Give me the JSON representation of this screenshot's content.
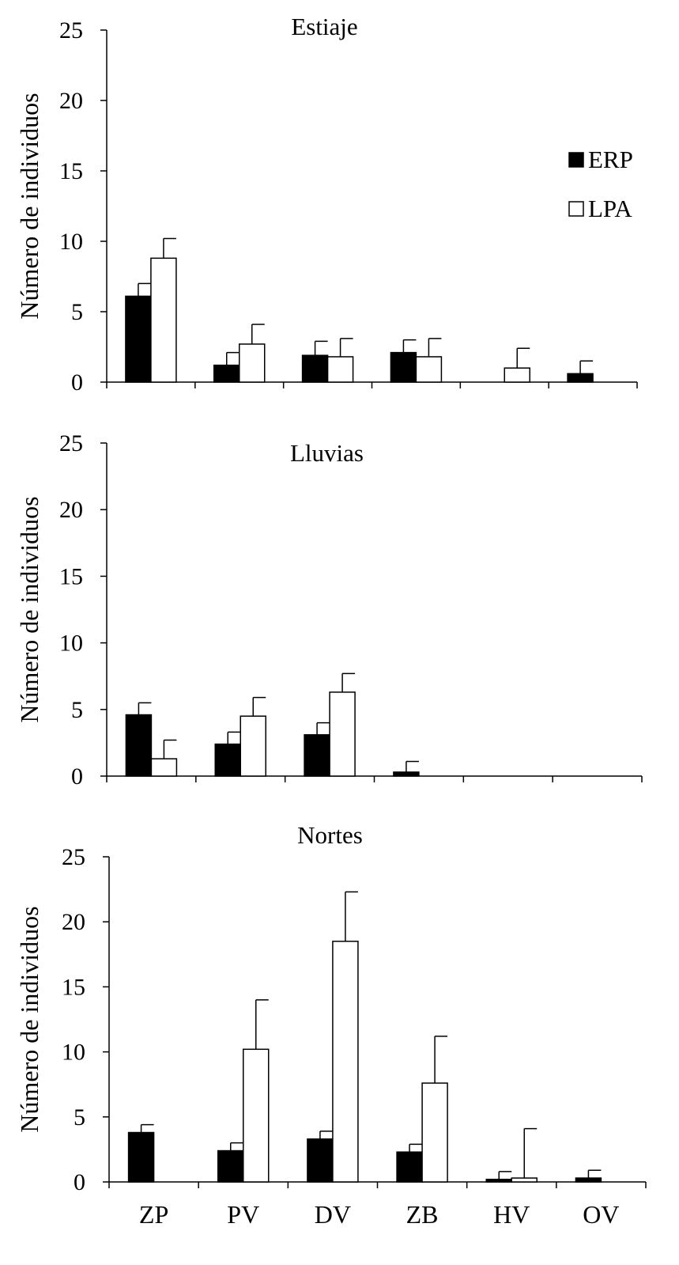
{
  "chart_data": [
    {
      "type": "bar",
      "title": "Estiaje",
      "ylabel": "Número de individuos",
      "xlabel": "",
      "ylim": [
        0,
        25
      ],
      "yticks": [
        0,
        5,
        10,
        15,
        20,
        25
      ],
      "categories": [
        "ZP",
        "PV",
        "DV",
        "ZB",
        "HV",
        "OV"
      ],
      "show_category_labels": false,
      "legend": {
        "placement": "top-right",
        "entries": [
          "ERP",
          "LPA"
        ]
      },
      "series": [
        {
          "name": "ERP",
          "color": "#000000",
          "values": [
            6.1,
            1.2,
            1.9,
            2.1,
            0,
            0.6
          ],
          "errors": [
            0.9,
            0.9,
            1.0,
            0.9,
            0,
            0.9
          ]
        },
        {
          "name": "LPA",
          "color": "#ffffff",
          "values": [
            8.8,
            2.7,
            1.8,
            1.8,
            1.0,
            0
          ],
          "errors": [
            1.4,
            1.4,
            1.3,
            1.3,
            1.4,
            0
          ]
        }
      ]
    },
    {
      "type": "bar",
      "title": "Lluvias",
      "ylabel": "Número de individuos",
      "xlabel": "",
      "ylim": [
        0,
        25
      ],
      "yticks": [
        0,
        5,
        10,
        15,
        20,
        25
      ],
      "categories": [
        "ZP",
        "PV",
        "DV",
        "ZB",
        "HV",
        "OV"
      ],
      "show_category_labels": false,
      "series": [
        {
          "name": "ERP",
          "color": "#000000",
          "values": [
            4.6,
            2.4,
            3.1,
            0.3,
            0,
            0
          ],
          "errors": [
            0.9,
            0.9,
            0.9,
            0.8,
            0,
            0
          ]
        },
        {
          "name": "LPA",
          "color": "#ffffff",
          "values": [
            1.3,
            4.5,
            6.3,
            0,
            0,
            0
          ],
          "errors": [
            1.4,
            1.4,
            1.4,
            0,
            0,
            0
          ]
        }
      ]
    },
    {
      "type": "bar",
      "title": "Nortes",
      "ylabel": "Número de individuos",
      "xlabel": "",
      "ylim": [
        0,
        25
      ],
      "yticks": [
        0,
        5,
        10,
        15,
        20,
        25
      ],
      "categories": [
        "ZP",
        "PV",
        "DV",
        "ZB",
        "HV",
        "OV"
      ],
      "show_category_labels": true,
      "series": [
        {
          "name": "ERP",
          "color": "#000000",
          "values": [
            3.8,
            2.4,
            3.3,
            2.3,
            0.2,
            0.3
          ],
          "errors": [
            0.6,
            0.6,
            0.6,
            0.6,
            0.6,
            0.6
          ]
        },
        {
          "name": "LPA",
          "color": "#ffffff",
          "values": [
            0,
            10.2,
            18.5,
            7.6,
            0.3,
            0
          ],
          "errors": [
            0,
            3.8,
            3.8,
            3.6,
            3.8,
            0
          ]
        }
      ]
    }
  ]
}
